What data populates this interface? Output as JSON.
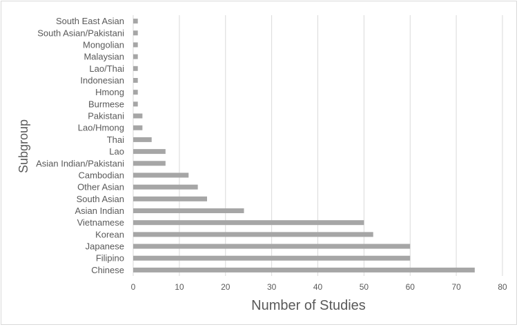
{
  "chart_data": {
    "type": "bar",
    "orientation": "horizontal",
    "xlabel": "Number of Studies",
    "ylabel": "Subgroup",
    "xlim": [
      0,
      80
    ],
    "xticks": [
      "0",
      "10",
      "20",
      "30",
      "40",
      "50",
      "60",
      "70",
      "80"
    ],
    "grid": "vertical gridlines",
    "bar_color": "#a6a6a6",
    "grid_color": "#d9d9d9",
    "categories": [
      "Chinese",
      "Filipino",
      "Japanese",
      "Korean",
      "Vietnamese",
      "Asian Indian",
      "South Asian",
      "Other Asian",
      "Cambodian",
      "Asian Indian/Pakistani",
      "Lao",
      "Thai",
      "Lao/Hmong",
      "Pakistani",
      "Burmese",
      "Hmong",
      "Indonesian",
      "Lao/Thai",
      "Malaysian",
      "Mongolian",
      "South Asian/Pakistani",
      "South East Asian"
    ],
    "values": [
      74,
      60,
      60,
      52,
      50,
      24,
      16,
      14,
      12,
      7,
      7,
      4,
      2,
      2,
      1,
      1,
      1,
      1,
      1,
      1,
      1,
      1
    ]
  }
}
